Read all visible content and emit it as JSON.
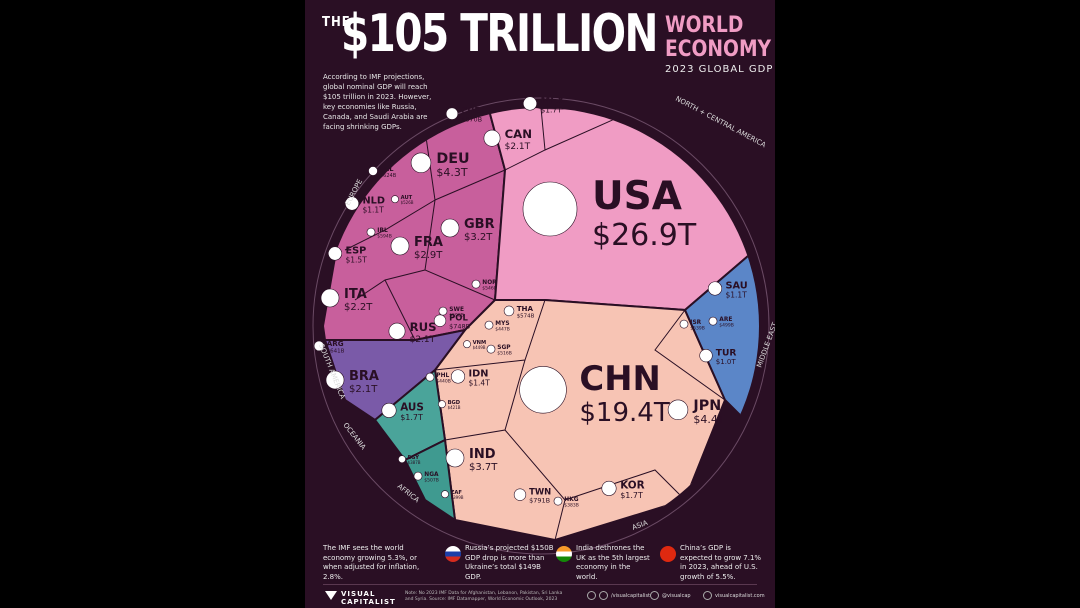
{
  "header": {
    "the": "THE",
    "big": "$105 TRILLION",
    "world": "WORLD",
    "economy": "ECONOMY",
    "subtitle": "2023 GLOBAL GDP",
    "intro": "According to IMF projections, global nominal GDP will reach $105 trillion in 2023. However, key economies like Russia, Canada, and Saudi Arabia are facing shrinking GDPs."
  },
  "chart_data": {
    "type": "voronoi-treemap",
    "title": "$105 TRILLION WORLD ECONOMY",
    "subtitle": "2023 GLOBAL GDP",
    "regions": [
      {
        "name": "NORTH + CENTRAL AMERICA",
        "color": "#f09cc4"
      },
      {
        "name": "EUROPE",
        "color": "#c85f9c"
      },
      {
        "name": "ASIA",
        "color": "#f7c4b4"
      },
      {
        "name": "MIDDLE EAST",
        "color": "#5b86c8"
      },
      {
        "name": "SOUTH AMERICA",
        "color": "#7a5aa8"
      },
      {
        "name": "OCEANIA",
        "color": "#4aa49a"
      },
      {
        "name": "AFRICA",
        "color": "#3f9a90"
      }
    ],
    "countries": [
      {
        "code": "USA",
        "value": "$26.9T",
        "region": "NORTH + CENTRAL AMERICA"
      },
      {
        "code": "CHN",
        "value": "$19.4T",
        "region": "ASIA"
      },
      {
        "code": "JPN",
        "value": "$4.4T",
        "region": "ASIA"
      },
      {
        "code": "DEU",
        "value": "$4.3T",
        "region": "EUROPE"
      },
      {
        "code": "IND",
        "value": "$3.7T",
        "region": "ASIA"
      },
      {
        "code": "GBR",
        "value": "$3.2T",
        "region": "EUROPE"
      },
      {
        "code": "FRA",
        "value": "$2.9T",
        "region": "EUROPE"
      },
      {
        "code": "ITA",
        "value": "$2.2T",
        "region": "EUROPE"
      },
      {
        "code": "CAN",
        "value": "$2.1T",
        "region": "NORTH + CENTRAL AMERICA"
      },
      {
        "code": "BRA",
        "value": "$2.1T",
        "region": "SOUTH AMERICA"
      },
      {
        "code": "RUS",
        "value": "$2.1T",
        "region": "EUROPE"
      },
      {
        "code": "MEX",
        "value": "$1.7T",
        "region": "NORTH + CENTRAL AMERICA"
      },
      {
        "code": "KOR",
        "value": "$1.7T",
        "region": "ASIA"
      },
      {
        "code": "AUS",
        "value": "$1.7T",
        "region": "OCEANIA"
      },
      {
        "code": "ESP",
        "value": "$1.5T",
        "region": "EUROPE"
      },
      {
        "code": "IDN",
        "value": "$1.4T",
        "region": "ASIA"
      },
      {
        "code": "NLD",
        "value": "$1.1T",
        "region": "EUROPE"
      },
      {
        "code": "SAU",
        "value": "$1.1T",
        "region": "MIDDLE EAST"
      },
      {
        "code": "TUR",
        "value": "$1.0T",
        "region": "MIDDLE EAST"
      },
      {
        "code": "CHE",
        "value": "$870B",
        "region": "EUROPE"
      },
      {
        "code": "TWN",
        "value": "$791B",
        "region": "ASIA"
      },
      {
        "code": "POL",
        "value": "$748B",
        "region": "EUROPE"
      },
      {
        "code": "THA",
        "value": "$574B",
        "region": "ASIA"
      },
      {
        "code": "ARG",
        "value": "$641B",
        "region": "SOUTH AMERICA"
      },
      {
        "code": "SWE",
        "value": "$598B",
        "region": "EUROPE"
      },
      {
        "code": "BEL",
        "value": "$624B",
        "region": "EUROPE"
      },
      {
        "code": "NOR",
        "value": "$546B",
        "region": "EUROPE"
      },
      {
        "code": "ISR",
        "value": "$539B",
        "region": "MIDDLE EAST"
      },
      {
        "code": "ARE",
        "value": "$499B",
        "region": "MIDDLE EAST"
      },
      {
        "code": "SGP",
        "value": "$516B",
        "region": "ASIA"
      },
      {
        "code": "NGA",
        "value": "$507B",
        "region": "AFRICA"
      },
      {
        "code": "IRL",
        "value": "$594B",
        "region": "EUROPE"
      },
      {
        "code": "EGY",
        "value": "$387B",
        "region": "AFRICA"
      },
      {
        "code": "AUT",
        "value": "$526B",
        "region": "EUROPE"
      },
      {
        "code": "HKG",
        "value": "$383B",
        "region": "ASIA"
      },
      {
        "code": "PHL",
        "value": "$440B",
        "region": "ASIA"
      },
      {
        "code": "VNM",
        "value": "$449B",
        "region": "ASIA"
      },
      {
        "code": "BGD",
        "value": "$421B",
        "region": "ASIA"
      },
      {
        "code": "MYS",
        "value": "$447B",
        "region": "ASIA"
      },
      {
        "code": "ZAF",
        "value": "$399B",
        "region": "AFRICA"
      }
    ]
  },
  "notes": [
    {
      "text": "The IMF sees the world economy growing 5.3%, or when adjusted for inflation, 2.8%."
    },
    {
      "text": "Russia’s projected $150B GDP drop is more than Ukraine’s total $149B GDP.",
      "icon": "russia-flag-icon"
    },
    {
      "text": "India dethrones the UK as the 5th largest economy in the world.",
      "icon": "india-flag-icon"
    },
    {
      "text": "China’s GDP is expected to grow 7.1% in 2023, ahead of U.S. growth of 5.5%.",
      "icon": "china-flag-icon"
    }
  ],
  "footer": {
    "brand_line1": "VISUAL",
    "brand_line2": "CAPITALIST",
    "source": "Note: No 2023 IMF Data for Afghanistan, Lebanon, Pakistan, Sri Lanka and Syria. Source: IMF Datamapper, World Economic Outlook, 2023",
    "social1": "/visualcapitalist",
    "social2": "@visualcap",
    "social3": "visualcapitalist.com"
  }
}
